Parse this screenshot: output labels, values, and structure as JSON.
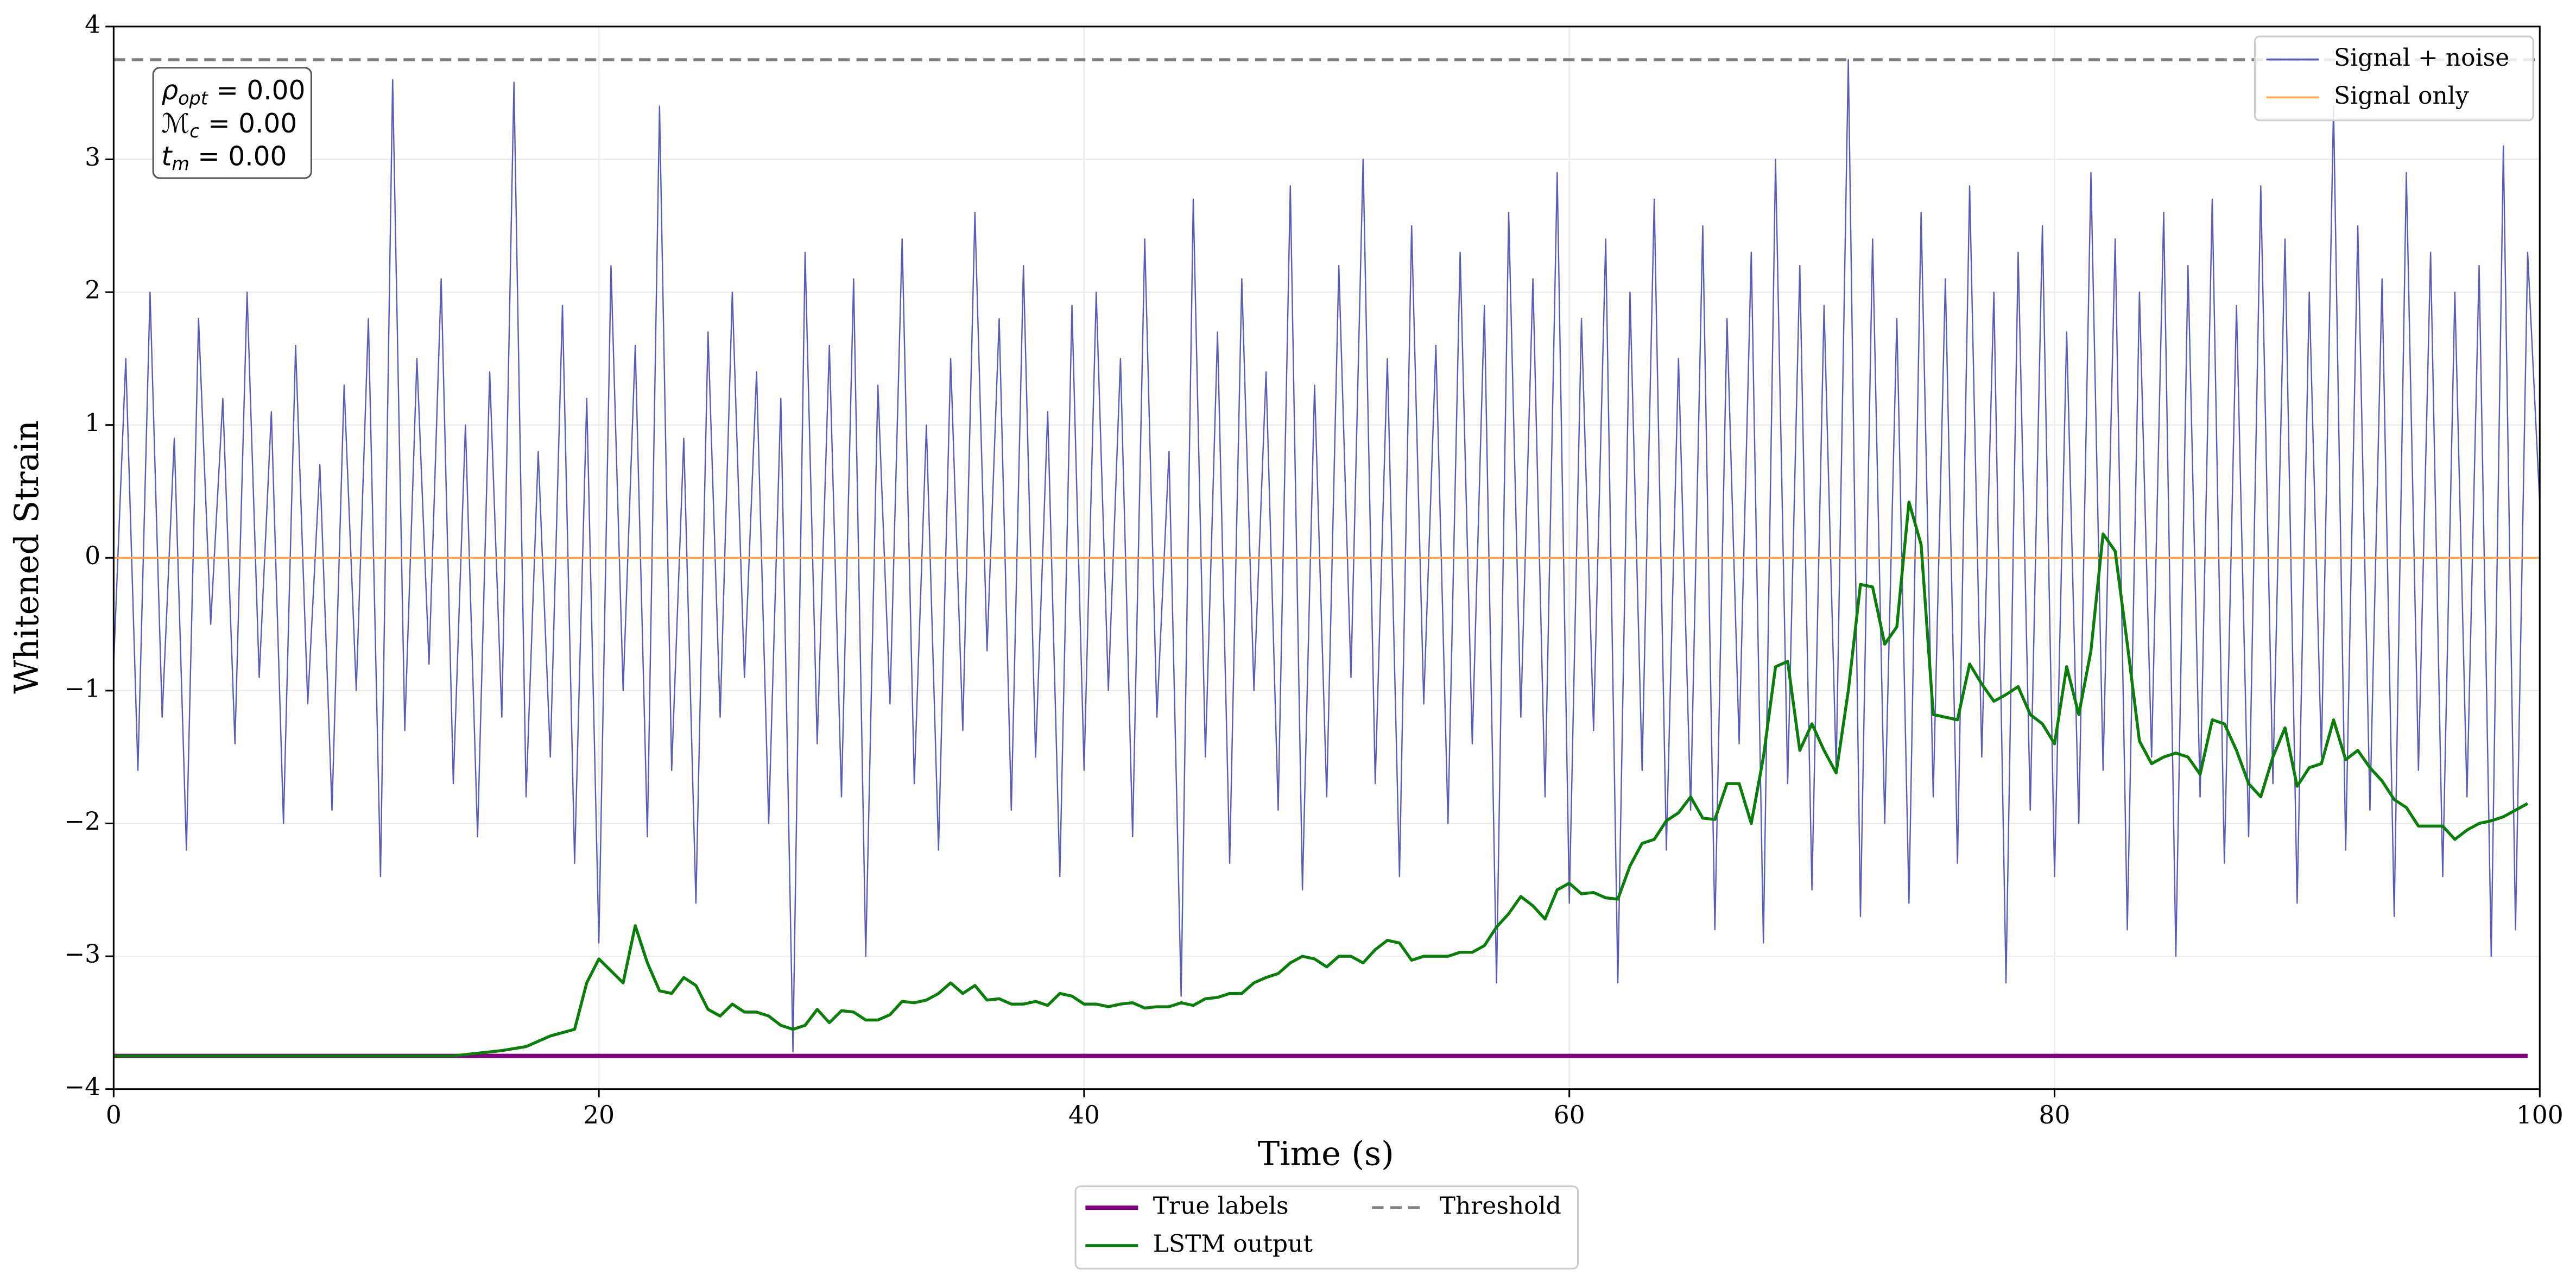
{
  "chart_data": {
    "type": "line",
    "xlabel": "Time (s)",
    "ylabel": "Whitened Strain",
    "xlim": [
      0,
      100
    ],
    "ylim": [
      -4,
      4
    ],
    "xticks": [
      0,
      20,
      40,
      60,
      80,
      100
    ],
    "yticks": [
      {
        "value": -4,
        "label": "−4"
      },
      {
        "value": -3,
        "label": "−3"
      },
      {
        "value": -2,
        "label": "−2"
      },
      {
        "value": -1,
        "label": "−1"
      },
      0,
      1,
      2,
      3,
      4
    ],
    "grid": true,
    "annotation": [
      {
        "symbol": "ρ",
        "sub": "opt",
        "text": " = 0.00"
      },
      {
        "symbol": "ℳ",
        "sub": "c",
        "text": " = 0.00"
      },
      {
        "symbol": "t",
        "sub": "m",
        "text": " = 0.00"
      }
    ],
    "series": [
      {
        "name": "Signal + noise",
        "color": "#5c5cb8",
        "width": 0.8,
        "style": "solid",
        "legend": "upper right",
        "x": [
          0,
          0.5,
          1,
          1.5,
          2,
          2.5,
          3,
          3.5,
          4,
          4.5,
          5,
          5.5,
          6,
          6.5,
          7,
          7.5,
          8,
          8.5,
          9,
          9.5,
          10,
          10.5,
          11,
          11.5,
          12,
          12.5,
          13,
          13.5,
          14,
          14.5,
          15,
          15.5,
          16,
          16.5,
          17,
          17.5,
          18,
          18.5,
          19,
          19.5,
          20,
          20.5,
          21,
          21.5,
          22,
          22.5,
          23,
          23.5,
          24,
          24.5,
          25,
          25.5,
          26,
          26.5,
          27,
          27.5,
          28,
          28.5,
          29,
          29.5,
          30,
          30.5,
          31,
          31.5,
          32,
          32.5,
          33,
          33.5,
          34,
          34.5,
          35,
          35.5,
          36,
          36.5,
          37,
          37.5,
          38,
          38.5,
          39,
          39.5,
          40,
          40.5,
          41,
          41.5,
          42,
          42.5,
          43,
          43.5,
          44,
          44.5,
          45,
          45.5,
          46,
          46.5,
          47,
          47.5,
          48,
          48.5,
          49,
          49.5,
          50,
          50.5,
          51,
          51.5,
          52,
          52.5,
          53,
          53.5,
          54,
          54.5,
          55,
          55.5,
          56,
          56.5,
          57,
          57.5,
          58,
          58.5,
          59,
          59.5,
          60,
          60.5,
          61,
          61.5,
          62,
          62.5,
          63,
          63.5,
          64,
          64.5,
          65,
          65.5,
          66,
          66.5,
          67,
          67.5,
          68,
          68.5,
          69,
          69.5,
          70,
          70.5,
          71,
          71.5,
          72,
          72.5,
          73,
          73.5,
          74,
          74.5,
          75,
          75.5,
          76,
          76.5,
          77,
          77.5,
          78,
          78.5,
          79,
          79.5,
          80,
          80.5,
          81,
          81.5,
          82,
          82.5,
          83,
          83.5,
          84,
          84.5,
          85,
          85.5,
          86,
          86.5,
          87,
          87.5,
          88,
          88.5,
          89,
          89.5,
          90,
          90.5,
          91,
          91.5,
          92,
          92.5,
          93,
          93.5,
          94,
          94.5,
          95,
          95.5,
          96,
          96.5,
          97,
          97.5,
          98,
          98.5,
          99,
          99.5,
          100
        ],
        "values": [
          -0.8,
          1.5,
          -1.6,
          2.0,
          -1.2,
          0.9,
          -2.2,
          1.8,
          -0.5,
          1.2,
          -1.4,
          2.0,
          -0.9,
          1.1,
          -2.0,
          1.6,
          -1.1,
          0.7,
          -1.9,
          1.3,
          -1.0,
          1.8,
          -2.4,
          3.6,
          -1.3,
          1.5,
          -0.8,
          2.1,
          -1.7,
          1.0,
          -2.1,
          1.4,
          -1.2,
          3.58,
          -1.8,
          0.8,
          -1.5,
          1.9,
          -2.3,
          1.2,
          -2.9,
          2.2,
          -1.0,
          1.6,
          -2.1,
          3.4,
          -1.6,
          0.9,
          -2.6,
          1.7,
          -1.2,
          2.0,
          -0.9,
          1.4,
          -2.0,
          1.2,
          -3.72,
          2.3,
          -1.4,
          1.6,
          -1.8,
          2.1,
          -3.0,
          1.3,
          -1.1,
          2.4,
          -1.7,
          1.0,
          -2.2,
          1.5,
          -1.3,
          2.6,
          -0.7,
          1.8,
          -1.9,
          2.2,
          -1.5,
          1.1,
          -2.4,
          1.9,
          -1.6,
          2.0,
          -1.0,
          1.5,
          -2.1,
          2.4,
          -1.2,
          0.8,
          -3.3,
          2.7,
          -1.5,
          1.7,
          -2.3,
          2.1,
          -1.0,
          1.4,
          -1.9,
          2.8,
          -2.5,
          1.3,
          -1.8,
          2.2,
          -0.9,
          3.0,
          -1.7,
          1.5,
          -2.4,
          2.5,
          -1.1,
          1.6,
          -2.0,
          2.3,
          -1.4,
          1.9,
          -3.2,
          2.6,
          -1.2,
          2.1,
          -1.8,
          2.9,
          -2.6,
          1.8,
          -1.3,
          2.4,
          -3.2,
          2.0,
          -1.6,
          2.7,
          -2.2,
          1.5,
          -1.9,
          2.5,
          -2.8,
          1.8,
          -1.4,
          2.3,
          -2.9,
          3.0,
          -1.7,
          2.2,
          -2.5,
          1.9,
          -1.6,
          3.75,
          -2.7,
          2.4,
          -2.0,
          1.8,
          -2.6,
          2.6,
          -1.8,
          2.1,
          -2.3,
          2.8,
          -1.5,
          2.0,
          -3.2,
          2.3,
          -1.9,
          2.5,
          -2.4,
          1.7,
          -2.0,
          2.9,
          -1.6,
          2.4,
          -2.8,
          2.0,
          -1.5,
          2.6,
          -3.0,
          2.2,
          -1.8,
          2.7,
          -2.3,
          1.9,
          -2.1,
          2.8,
          -1.7,
          2.4,
          -2.6,
          2.0,
          -1.5,
          3.4,
          -2.2,
          2.5,
          -1.9,
          2.1,
          -2.7,
          2.9,
          -1.6,
          2.3,
          -2.4,
          2.0,
          -1.8,
          2.2,
          -3.0,
          3.1,
          -2.8,
          2.3,
          0.4
        ]
      },
      {
        "name": "Signal only",
        "color": "#ffa64d",
        "width": 1.2,
        "style": "solid",
        "legend": "upper right",
        "x": [
          0,
          100
        ],
        "values": [
          0,
          0
        ]
      },
      {
        "name": "True labels",
        "color": "#800080",
        "width": 2.6,
        "style": "solid",
        "legend": "lower center",
        "x": [
          0,
          99.5
        ],
        "values": [
          -3.75,
          -3.75
        ]
      },
      {
        "name": "LSTM output",
        "color": "#0a7d0a",
        "width": 1.8,
        "style": "solid",
        "legend": "lower center",
        "x": [
          0,
          14,
          15,
          16,
          17,
          18,
          19,
          19.5,
          20,
          21,
          21.5,
          22,
          22.5,
          23,
          23.5,
          24,
          24.5,
          25,
          25.5,
          26,
          26.5,
          27,
          27.5,
          28,
          28.5,
          29,
          29.5,
          30,
          30.5,
          31,
          31.5,
          32,
          32.5,
          33,
          33.5,
          34,
          34.5,
          35,
          35.5,
          36,
          36.5,
          37,
          37.5,
          38,
          38.5,
          39,
          39.5,
          40,
          40.5,
          41,
          41.5,
          42,
          42.5,
          43,
          43.5,
          44,
          44.5,
          45,
          45.5,
          46,
          46.5,
          47,
          47.5,
          48,
          48.5,
          49,
          49.5,
          50,
          50.5,
          51,
          51.5,
          52,
          52.5,
          53,
          53.5,
          54,
          54.5,
          55,
          55.5,
          56,
          56.5,
          57,
          57.5,
          58,
          58.5,
          59,
          59.5,
          60,
          60.5,
          61,
          61.5,
          62,
          62.5,
          63,
          63.5,
          64,
          64.5,
          65,
          65.5,
          66,
          66.5,
          67,
          67.5,
          68,
          68.5,
          69,
          69.5,
          70,
          70.5,
          71,
          71.5,
          72,
          72.5,
          73,
          73.5,
          74,
          74.5,
          75,
          75.5,
          76,
          76.5,
          77,
          77.5,
          78,
          78.5,
          79,
          79.5,
          80,
          80.5,
          81,
          81.5,
          82,
          82.5,
          83,
          83.5,
          84,
          84.5,
          85,
          85.5,
          86,
          86.5,
          87,
          87.5,
          88,
          88.5,
          89,
          89.5,
          90,
          90.5,
          91,
          91.5,
          92,
          92.5,
          93,
          93.5,
          94,
          94.5,
          95,
          95.5,
          96,
          96.5,
          97,
          97.5,
          98,
          98.5,
          99,
          99.5
        ],
        "values": [
          -3.75,
          -3.75,
          -3.73,
          -3.71,
          -3.68,
          -3.6,
          -3.55,
          -3.2,
          -3.02,
          -3.2,
          -2.77,
          -3.05,
          -3.26,
          -3.28,
          -3.16,
          -3.22,
          -3.4,
          -3.45,
          -3.36,
          -3.42,
          -3.42,
          -3.45,
          -3.52,
          -3.55,
          -3.52,
          -3.4,
          -3.5,
          -3.41,
          -3.42,
          -3.48,
          -3.48,
          -3.44,
          -3.34,
          -3.35,
          -3.33,
          -3.28,
          -3.2,
          -3.28,
          -3.22,
          -3.33,
          -3.32,
          -3.36,
          -3.36,
          -3.34,
          -3.37,
          -3.28,
          -3.3,
          -3.36,
          -3.36,
          -3.38,
          -3.36,
          -3.35,
          -3.39,
          -3.38,
          -3.38,
          -3.35,
          -3.37,
          -3.32,
          -3.31,
          -3.28,
          -3.28,
          -3.2,
          -3.16,
          -3.13,
          -3.05,
          -3.0,
          -3.02,
          -3.08,
          -3.0,
          -3.0,
          -3.05,
          -2.95,
          -2.88,
          -2.9,
          -3.03,
          -3.0,
          -3.0,
          -3.0,
          -2.97,
          -2.97,
          -2.92,
          -2.78,
          -2.68,
          -2.55,
          -2.62,
          -2.72,
          -2.5,
          -2.45,
          -2.53,
          -2.52,
          -2.56,
          -2.57,
          -2.32,
          -2.15,
          -2.12,
          -1.98,
          -1.92,
          -1.8,
          -1.96,
          -1.97,
          -1.7,
          -1.7,
          -2.0,
          -1.5,
          -0.82,
          -0.78,
          -1.45,
          -1.25,
          -1.45,
          -1.62,
          -1.0,
          -0.2,
          -0.22,
          -0.65,
          -0.52,
          0.42,
          0.1,
          -1.18,
          -1.2,
          -1.22,
          -0.8,
          -0.95,
          -1.08,
          -1.03,
          -0.97,
          -1.18,
          -1.25,
          -1.4,
          -0.82,
          -1.18,
          -0.7,
          0.18,
          0.05,
          -0.65,
          -1.38,
          -1.55,
          -1.5,
          -1.47,
          -1.5,
          -1.63,
          -1.22,
          -1.25,
          -1.45,
          -1.7,
          -1.8,
          -1.5,
          -1.28,
          -1.72,
          -1.58,
          -1.55,
          -1.22,
          -1.52,
          -1.45,
          -1.58,
          -1.68,
          -1.82,
          -1.88,
          -2.02,
          -2.02,
          -2.02,
          -2.12,
          -2.05,
          -2.0,
          -1.98,
          -1.95,
          -1.9,
          -1.85
        ]
      },
      {
        "name": "Threshold",
        "color": "#808080",
        "width": 1.8,
        "style": "dashed",
        "legend": "lower center",
        "x": [
          0,
          100
        ],
        "values": [
          3.75,
          3.75
        ]
      }
    ]
  }
}
